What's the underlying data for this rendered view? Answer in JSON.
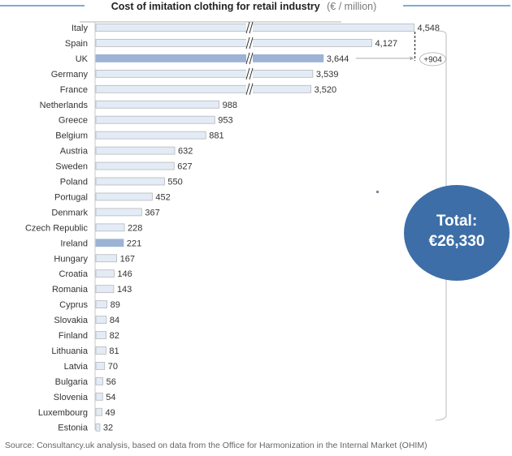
{
  "chart_data": {
    "type": "bar",
    "orientation": "horizontal",
    "title": "Cost of imitation clothing for retail industry",
    "title_unit": "(€ / million)",
    "xlabel": "",
    "ylabel": "",
    "axis_break": true,
    "axis_break_note": "Bars for Italy, Spain, UK, Germany and France are truncated with a broken-axis marker",
    "categories": [
      "Italy",
      "Spain",
      "UK",
      "Germany",
      "France",
      "Netherlands",
      "Greece",
      "Belgium",
      "Austria",
      "Sweden",
      "Poland",
      "Portugal",
      "Denmark",
      "Czech Republic",
      "Ireland",
      "Hungary",
      "Croatia",
      "Romania",
      "Cyprus",
      "Slovakia",
      "Finland",
      "Lithuania",
      "Latvia",
      "Bulgaria",
      "Slovenia",
      "Luxembourg",
      "Estonia"
    ],
    "values": [
      4548,
      4127,
      3644,
      3539,
      3520,
      988,
      953,
      881,
      632,
      627,
      550,
      452,
      367,
      228,
      221,
      167,
      146,
      143,
      89,
      84,
      82,
      81,
      70,
      56,
      54,
      49,
      32
    ],
    "value_labels": [
      "4,548",
      "4,127",
      "3,644",
      "3,539",
      "3,520",
      "988",
      "953",
      "881",
      "632",
      "627",
      "550",
      "452",
      "367",
      "228",
      "221",
      "167",
      "146",
      "143",
      "89",
      "84",
      "82",
      "81",
      "70",
      "56",
      "54",
      "49",
      "32"
    ],
    "highlighted": [
      "UK",
      "Ireland"
    ],
    "colors": {
      "bar_fill": "#e3ebf6",
      "bar_border": "#b8b8b8",
      "highlight_fill": "#9db3d6",
      "title_rule": "#5b8ec7",
      "total_circle": "#3d6ea8"
    },
    "annotation_difference": {
      "from": "UK",
      "to": "Italy",
      "label": "+904"
    },
    "total": {
      "label": "Total:",
      "value": "€26,330"
    },
    "legend": null,
    "grid": false
  },
  "source": "Source: Consultancy.uk analysis, based on data from the Office for Harmonization in the Internal Market (OHIM)"
}
